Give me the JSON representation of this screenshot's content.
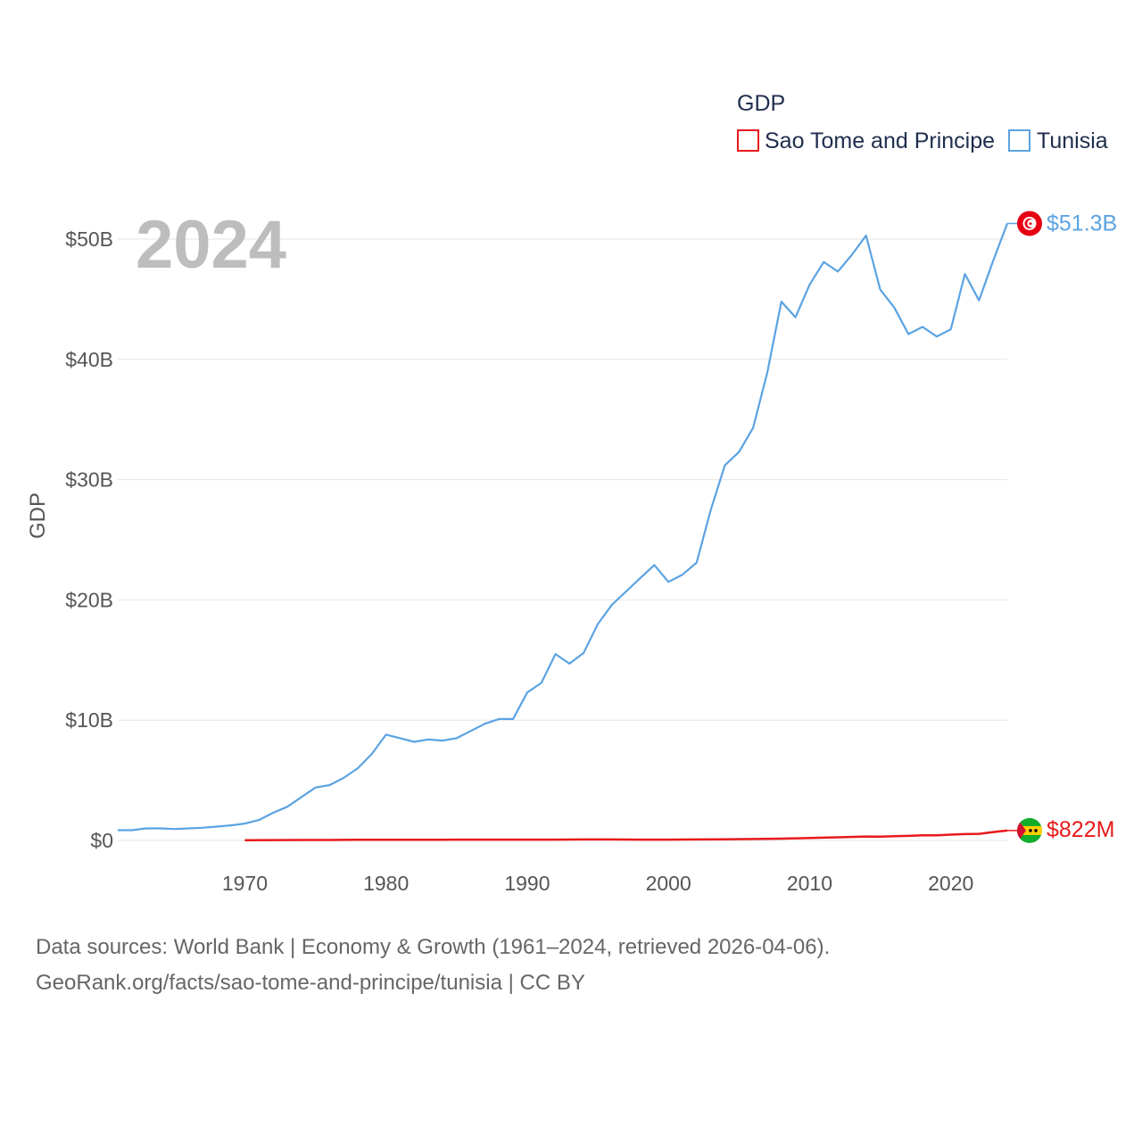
{
  "chart_data": {
    "type": "line",
    "title": "2024",
    "xlabel": "",
    "ylabel": "GDP",
    "legend_title": "GDP",
    "legend_placement": "top-right",
    "x_ticks": [
      "1970",
      "1980",
      "1990",
      "2000",
      "2010",
      "2020"
    ],
    "y_ticks": [
      {
        "value": 0,
        "label": "$0"
      },
      {
        "value": 10,
        "label": "$10B"
      },
      {
        "value": 20,
        "label": "$20B"
      },
      {
        "value": 30,
        "label": "$30B"
      },
      {
        "value": 40,
        "label": "$40B"
      },
      {
        "value": 50,
        "label": "$50B"
      }
    ],
    "xlim": [
      1961,
      2024
    ],
    "ylim": [
      0,
      50
    ],
    "units": "billions USD",
    "series": [
      {
        "name": "Sao Tome and Principe",
        "color": "#e8191b",
        "end_label": "$822M",
        "flag": "sao-tome-flag-icon",
        "x": [
          1970,
          1972,
          1974,
          1976,
          1978,
          1980,
          1982,
          1984,
          1986,
          1988,
          1990,
          1992,
          1994,
          1996,
          1998,
          2000,
          2002,
          2004,
          2006,
          2008,
          2010,
          2012,
          2014,
          2015,
          2016,
          2017,
          2018,
          2019,
          2020,
          2021,
          2022,
          2023,
          2024
        ],
        "values": [
          0.02,
          0.03,
          0.04,
          0.04,
          0.05,
          0.06,
          0.06,
          0.06,
          0.07,
          0.07,
          0.07,
          0.07,
          0.08,
          0.08,
          0.07,
          0.07,
          0.08,
          0.1,
          0.12,
          0.15,
          0.2,
          0.26,
          0.33,
          0.32,
          0.35,
          0.38,
          0.42,
          0.43,
          0.48,
          0.53,
          0.55,
          0.7,
          0.822
        ]
      },
      {
        "name": "Tunisia",
        "color": "#5ba3e2",
        "end_label": "$51.3B",
        "flag": "tunisia-flag-icon",
        "x": [
          1961,
          1962,
          1963,
          1964,
          1965,
          1966,
          1967,
          1968,
          1969,
          1970,
          1971,
          1972,
          1973,
          1974,
          1975,
          1976,
          1977,
          1978,
          1979,
          1980,
          1981,
          1982,
          1983,
          1984,
          1985,
          1986,
          1987,
          1988,
          1989,
          1990,
          1991,
          1992,
          1993,
          1994,
          1995,
          1996,
          1997,
          1998,
          1999,
          2000,
          2001,
          2002,
          2003,
          2004,
          2005,
          2006,
          2007,
          2008,
          2009,
          2010,
          2011,
          2012,
          2013,
          2014,
          2015,
          2016,
          2017,
          2018,
          2019,
          2020,
          2021,
          2022,
          2023,
          2024
        ],
        "values": [
          0.85,
          0.85,
          1.0,
          1.0,
          0.95,
          1.0,
          1.05,
          1.15,
          1.25,
          1.4,
          1.7,
          2.3,
          2.8,
          3.6,
          4.4,
          4.6,
          5.2,
          6.0,
          7.2,
          8.8,
          8.5,
          8.2,
          8.4,
          8.3,
          8.5,
          9.1,
          9.7,
          10.1,
          10.1,
          12.3,
          13.1,
          15.5,
          14.7,
          15.6,
          18.0,
          19.6,
          20.7,
          21.8,
          22.9,
          21.5,
          22.1,
          23.1,
          27.5,
          31.2,
          32.3,
          34.3,
          38.9,
          44.8,
          43.5,
          46.2,
          48.1,
          47.3,
          48.7,
          50.3,
          45.8,
          44.3,
          42.1,
          42.7,
          41.9,
          42.5,
          47.1,
          44.9,
          48.2,
          51.3
        ]
      }
    ]
  },
  "footer": {
    "sources": "Data sources: World Bank | Economy & Growth (1961–2024, retrieved 2026-04-06).",
    "credit": "GeoRank.org/facts/sao-tome-and-principe/tunisia | CC BY"
  }
}
